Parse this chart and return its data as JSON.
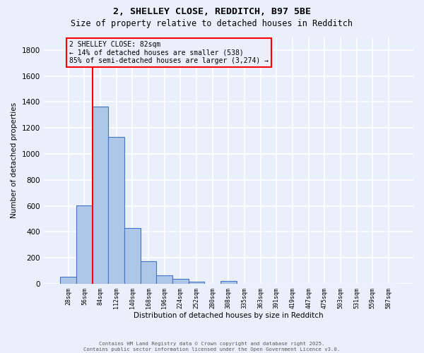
{
  "title_line1": "2, SHELLEY CLOSE, REDDITCH, B97 5BE",
  "title_line2": "Size of property relative to detached houses in Redditch",
  "xlabel": "Distribution of detached houses by size in Redditch",
  "ylabel": "Number of detached properties",
  "footer_line1": "Contains HM Land Registry data © Crown copyright and database right 2025.",
  "footer_line2": "Contains public sector information licensed under the Open Government Licence v3.0.",
  "bin_labels": [
    "28sqm",
    "56sqm",
    "84sqm",
    "112sqm",
    "140sqm",
    "168sqm",
    "196sqm",
    "224sqm",
    "252sqm",
    "280sqm",
    "308sqm",
    "335sqm",
    "363sqm",
    "391sqm",
    "419sqm",
    "447sqm",
    "475sqm",
    "503sqm",
    "531sqm",
    "559sqm",
    "587sqm"
  ],
  "bar_values": [
    55,
    605,
    1365,
    1130,
    430,
    175,
    65,
    40,
    15,
    0,
    20,
    0,
    0,
    0,
    0,
    0,
    0,
    0,
    0,
    0,
    0
  ],
  "bar_color": "#aec6e8",
  "bar_edge_color": "#4472c4",
  "background_color": "#eaf0fb",
  "grid_color": "#ffffff",
  "ylim": [
    0,
    1900
  ],
  "yticks": [
    0,
    200,
    400,
    600,
    800,
    1000,
    1200,
    1400,
    1600,
    1800
  ],
  "property_line_color": "red",
  "property_line_x": 2.0,
  "annotation_text": "2 SHELLEY CLOSE: 82sqm\n← 14% of detached houses are smaller (538)\n85% of semi-detached houses are larger (3,274) →",
  "annotation_box_color": "red"
}
